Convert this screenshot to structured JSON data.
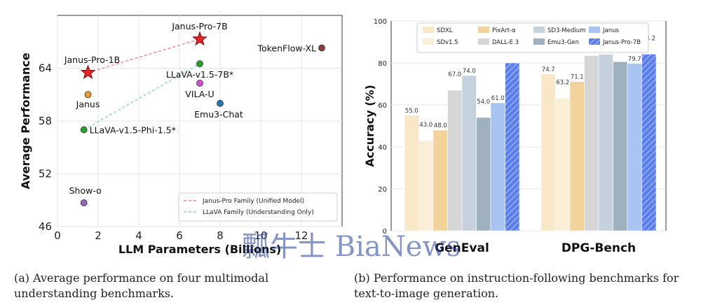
{
  "chart_data": [
    {
      "type": "scatter",
      "xlabel": "LLM Parameters (Billions)",
      "ylabel": "Average Performance",
      "xlim": [
        0,
        14
      ],
      "ylim": [
        46,
        70
      ],
      "xticks": [
        0,
        2,
        4,
        6,
        8,
        10,
        12
      ],
      "yticks": [
        46,
        52,
        58,
        64
      ],
      "grid": true,
      "legend_position": "bottom-right",
      "points": [
        {
          "label": "Janus-Pro-1B",
          "x": 1.5,
          "y": 63.5,
          "marker": "star",
          "color": "#e3262a"
        },
        {
          "label": "Janus-Pro-7B",
          "x": 7.0,
          "y": 67.3,
          "marker": "star",
          "color": "#e3262a"
        },
        {
          "label": "Janus",
          "x": 1.5,
          "y": 61.0,
          "marker": "circle",
          "color": "#f29a2e"
        },
        {
          "label": "LLaVA-v1.5-7B*",
          "x": 7.0,
          "y": 64.5,
          "marker": "circle",
          "color": "#2ca02c"
        },
        {
          "label": "LLaVA-v1.5-Phi-1.5*",
          "x": 1.3,
          "y": 57.0,
          "marker": "circle",
          "color": "#2ca02c"
        },
        {
          "label": "VILA-U",
          "x": 7.0,
          "y": 62.3,
          "marker": "circle",
          "color": "#d64fd6"
        },
        {
          "label": "Emu3-Chat",
          "x": 8.0,
          "y": 60.0,
          "marker": "circle",
          "color": "#1f77b4"
        },
        {
          "label": "TokenFlow-XL",
          "x": 13.0,
          "y": 66.3,
          "marker": "circle",
          "color": "#8c3b3b"
        },
        {
          "label": "Show-o",
          "x": 1.3,
          "y": 48.7,
          "marker": "circle",
          "color": "#9467bd"
        }
      ],
      "lines": [
        {
          "name": "Janus-Pro Family (Unified Model)",
          "color": "#ff8080",
          "from": "Janus-Pro-1B",
          "to": "Janus-Pro-7B"
        },
        {
          "name": "LLaVA Family (Understanding Only)",
          "color": "#88ddaa",
          "from": "LLaVA-v1.5-Phi-1.5*",
          "to": "LLaVA-v1.5-7B*"
        }
      ]
    },
    {
      "type": "bar",
      "ylabel": "Accuracy (%)",
      "ylim": [
        0,
        100
      ],
      "yticks": [
        0,
        20,
        40,
        60,
        80,
        100
      ],
      "categories": [
        "GenEval",
        "DPG-Bench"
      ],
      "legend_position": "top",
      "series": [
        {
          "name": "SDXL",
          "color": "#f9e8c8",
          "values": [
            55.0,
            74.7
          ]
        },
        {
          "name": "SDv1.5",
          "color": "#fbeed7",
          "values": [
            43.0,
            63.2
          ]
        },
        {
          "name": "PixArt-α",
          "color": "#f3d39b",
          "values": [
            48.0,
            71.1
          ]
        },
        {
          "name": "DALL-E 3",
          "color": "#d6d6d6",
          "values": [
            67.0,
            83.5
          ]
        },
        {
          "name": "SD3-Medium",
          "color": "#c5d1dd",
          "values": [
            74.0,
            84.1
          ]
        },
        {
          "name": "Emu3-Gen",
          "color": "#9fb0bf",
          "values": [
            54.0,
            80.6
          ]
        },
        {
          "name": "Janus",
          "color": "#a9c3f3",
          "values": [
            61.0,
            79.7
          ]
        },
        {
          "name": "Janus-Pro-7B",
          "color": "#5a7ef0",
          "hatched": true,
          "values": [
            80.0,
            84.2
          ]
        }
      ]
    }
  ],
  "captions": {
    "a": "(a) Average performance on four multimodal understanding benchmarks.",
    "b": "(b) Performance on instruction-following benchmarks for text-to-image generation."
  },
  "watermark": "瓢牛士 BiaNews"
}
